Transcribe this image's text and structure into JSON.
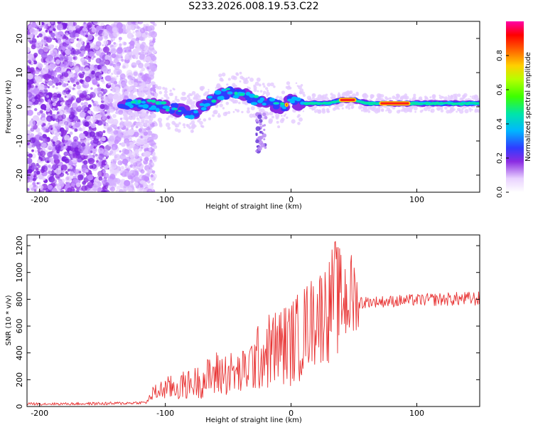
{
  "title": "S233.2026.008.19.53.C22",
  "chart_data": [
    {
      "type": "heatmap",
      "title": "S233.2026.008.19.53.C22",
      "xlabel": "Height of straight line (km)",
      "ylabel": "Frequency (Hz)",
      "xlim": [
        -210,
        150
      ],
      "ylim": [
        -25,
        25
      ],
      "xticks": [
        -200,
        -100,
        0,
        100
      ],
      "yticks": [
        -20,
        -10,
        0,
        10,
        20
      ],
      "colorbar": {
        "label": "Normalized spectral amplitude",
        "range": [
          0,
          1
        ],
        "ticks": [
          0.0,
          0.2,
          0.4,
          0.6,
          0.8
        ],
        "tick_labels": [
          "0.0",
          "0.2",
          "0.4",
          "0.6",
          "0.8"
        ]
      },
      "description_series": {
        "noise_region_km": [
          -210,
          -120
        ],
        "ridge_center_hz": {
          "x": [
            -135,
            -120,
            -100,
            -90,
            -80,
            -70,
            -60,
            -50,
            -45,
            -40,
            -35,
            -30,
            -25,
            -20,
            -15,
            -10,
            -5,
            0,
            5,
            10,
            20,
            30,
            40,
            50,
            60,
            80,
            100,
            120,
            150
          ],
          "y": [
            0,
            1,
            0,
            -1,
            -2,
            0,
            3,
            4,
            4,
            4,
            3,
            2,
            2,
            1,
            1,
            0,
            0,
            2,
            1,
            1,
            1,
            1,
            2,
            2,
            1,
            1,
            1,
            1,
            1
          ]
        },
        "peak_amplitude_km": [
          [
            -5,
            -2
          ],
          [
            70,
            95
          ],
          [
            38,
            52
          ]
        ]
      }
    },
    {
      "type": "line",
      "xlabel": "Height of straight line (km)",
      "ylabel": "SNR (10 * v/v)",
      "xlim": [
        -210,
        150
      ],
      "ylim": [
        0,
        1280
      ],
      "xticks": [
        -200,
        -100,
        0,
        100
      ],
      "yticks": [
        0,
        200,
        400,
        600,
        800,
        1000,
        1200
      ],
      "color": "#e83333",
      "envelope": {
        "x": [
          -210,
          -180,
          -140,
          -115,
          -110,
          -100,
          -90,
          -80,
          -70,
          -60,
          -50,
          -40,
          -30,
          -20,
          -10,
          0,
          10,
          20,
          30,
          35,
          40,
          50,
          55,
          60,
          80,
          100,
          120,
          150
        ],
        "low": [
          10,
          10,
          10,
          20,
          40,
          50,
          40,
          60,
          60,
          60,
          80,
          80,
          100,
          120,
          150,
          150,
          200,
          250,
          300,
          320,
          300,
          350,
          700,
          740,
          740,
          750,
          750,
          750
        ],
        "high": [
          30,
          30,
          35,
          40,
          150,
          220,
          250,
          280,
          330,
          420,
          420,
          400,
          560,
          690,
          750,
          800,
          900,
          1000,
          1100,
          1270,
          1150,
          1150,
          850,
          820,
          830,
          840,
          850,
          860
        ]
      }
    }
  ]
}
